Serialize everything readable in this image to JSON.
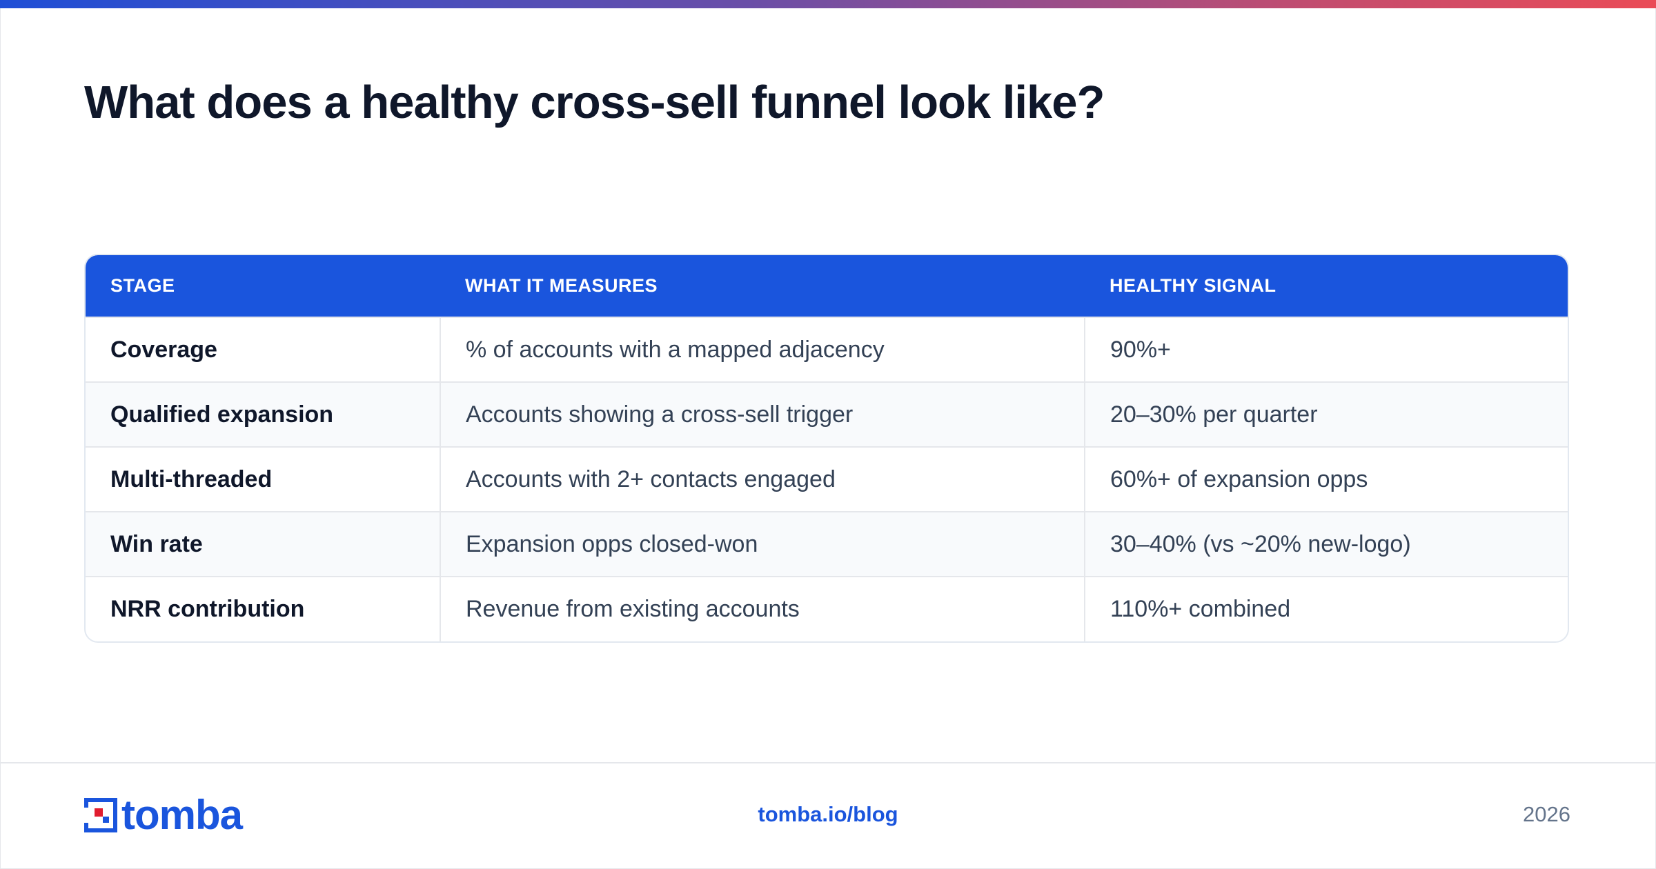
{
  "page": {
    "title": "What does a healthy cross-sell funnel look like?"
  },
  "table": {
    "headers": [
      "STAGE",
      "WHAT IT MEASURES",
      "HEALTHY SIGNAL"
    ],
    "rows": [
      {
        "stage": "Coverage",
        "measures": "% of accounts with a mapped adjacency",
        "signal": "90%+"
      },
      {
        "stage": "Qualified expansion",
        "measures": "Accounts showing a cross-sell trigger",
        "signal": "20–30% per quarter"
      },
      {
        "stage": "Multi-threaded",
        "measures": "Accounts with 2+ contacts engaged",
        "signal": "60%+ of expansion opps"
      },
      {
        "stage": "Win rate",
        "measures": "Expansion opps closed-won",
        "signal": "30–40% (vs ~20% new-logo)"
      },
      {
        "stage": "NRR contribution",
        "measures": "Revenue from existing accounts",
        "signal": "110%+ combined"
      }
    ]
  },
  "footer": {
    "logo_text": "tomba",
    "link": "tomba.io/blog",
    "year": "2026"
  },
  "colors": {
    "accent": "#1a55dd",
    "logo_red": "#e11d2e",
    "gradient_start": "#1f4fd6",
    "gradient_end": "#ea4b57"
  },
  "icons": {
    "logo_mark": "tomba-logo-icon"
  }
}
